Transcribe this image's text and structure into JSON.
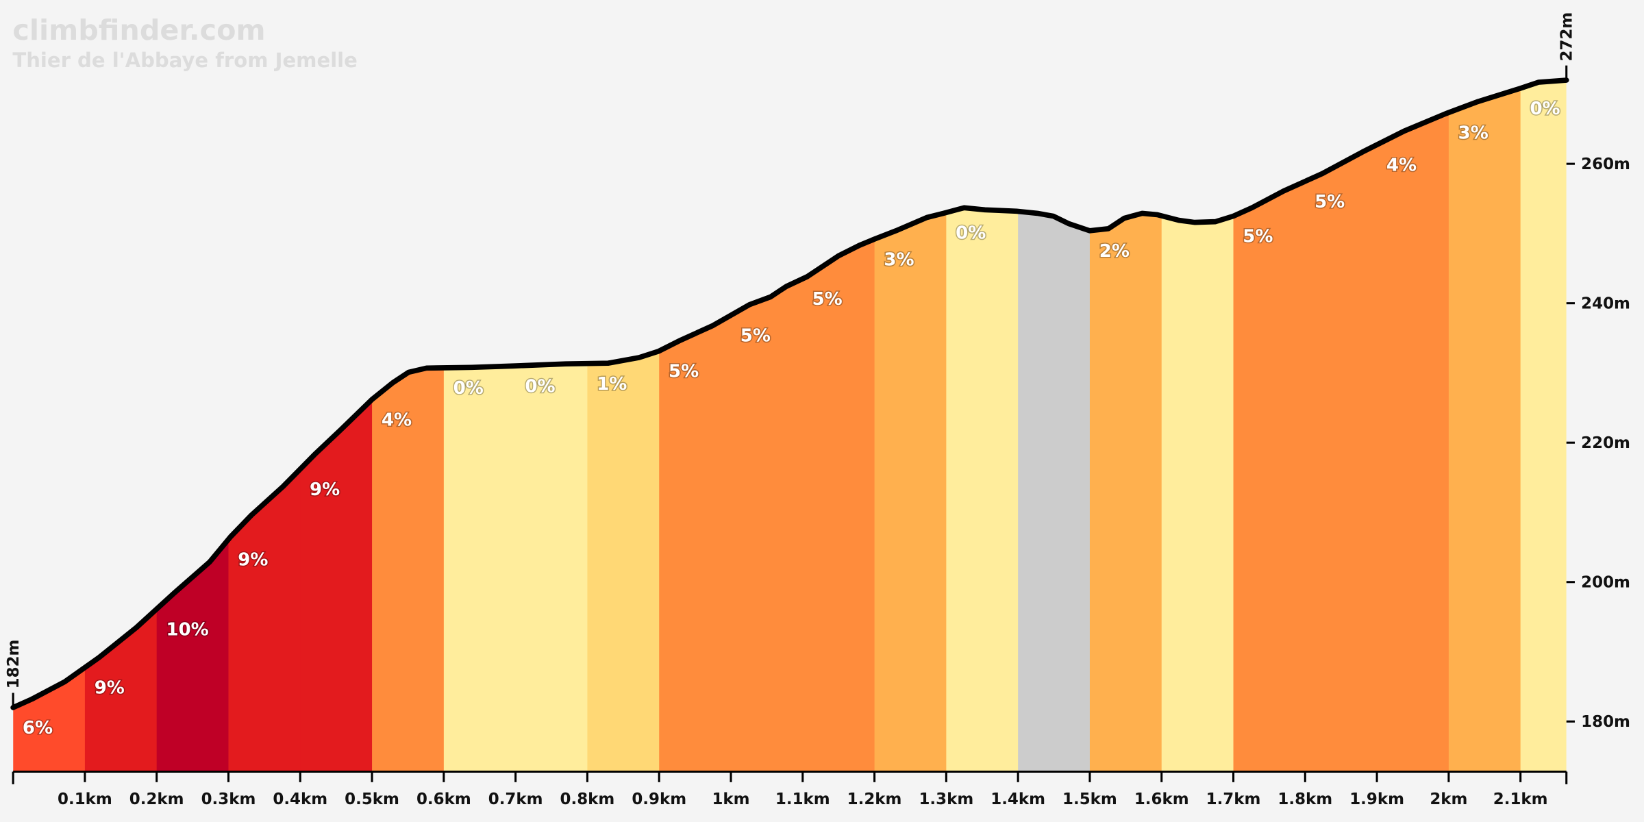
{
  "chart_data": {
    "type": "elevation-profile",
    "title": "climbfinder.com",
    "subtitle": "Thier de l'Abbaye from Jemelle",
    "start_label": "182m",
    "end_label": "272m",
    "line_color": "#000000",
    "x": [
      0,
      0.026,
      0.072,
      0.12,
      0.172,
      0.223,
      0.274,
      0.303,
      0.332,
      0.376,
      0.42,
      0.456,
      0.5,
      0.529,
      0.551,
      0.576,
      0.639,
      0.697,
      0.77,
      0.829,
      0.872,
      0.899,
      0.93,
      0.975,
      1.026,
      1.055,
      1.077,
      1.106,
      1.15,
      1.179,
      1.2,
      1.23,
      1.273,
      1.296,
      1.325,
      1.354,
      1.398,
      1.427,
      1.449,
      1.471,
      1.5,
      1.526,
      1.548,
      1.573,
      1.594,
      1.624,
      1.646,
      1.675,
      1.7,
      1.726,
      1.77,
      1.824,
      1.88,
      1.938,
      1.996,
      2.04,
      2.099,
      2.125,
      2.164
    ],
    "values": [
      182,
      183.2,
      185.7,
      189.2,
      193.5,
      198.3,
      202.9,
      206.5,
      209.6,
      213.7,
      218.3,
      221.8,
      226.2,
      228.6,
      230.1,
      230.7,
      230.8,
      231.0,
      231.3,
      231.4,
      232.2,
      233.1,
      234.7,
      236.8,
      239.8,
      240.9,
      242.4,
      243.8,
      246.8,
      248.3,
      249.2,
      250.4,
      252.3,
      252.9,
      253.7,
      253.4,
      253.2,
      252.9,
      252.5,
      251.4,
      250.4,
      250.7,
      252.2,
      252.9,
      252.7,
      251.9,
      251.6,
      251.7,
      252.5,
      253.7,
      256.1,
      258.6,
      261.7,
      264.7,
      267.2,
      268.9,
      270.8,
      271.7,
      272
    ],
    "segments": {
      "bounds": [
        0,
        0.1,
        0.2,
        0.3,
        0.4,
        0.5,
        0.6,
        0.7,
        0.8,
        0.9,
        1.0,
        1.1,
        1.2,
        1.3,
        1.4,
        1.5,
        1.6,
        1.7,
        1.8,
        1.9,
        2.0,
        2.1,
        2.164
      ],
      "values": [
        6,
        9,
        10,
        9,
        9,
        4,
        0,
        0,
        1,
        5,
        5,
        5,
        3,
        0,
        null,
        2,
        null,
        5,
        5,
        4,
        3,
        0
      ],
      "value_labels": [
        "6%",
        "9%",
        "10%",
        "9%",
        "9%",
        "4%",
        "0%",
        "0%",
        "1%",
        "5%",
        "5%",
        "5%",
        "3%",
        "0%",
        null,
        "2%",
        null,
        "5%",
        "5%",
        "4%",
        "3%",
        "0%"
      ],
      "colors": [
        "#ff4b2b",
        "#e31b1e",
        "#bf0026",
        "#e31b1e",
        "#e31b1e",
        "#ff8c3c",
        "#ffed9c",
        "#ffed9c",
        "#ffd875",
        "#ff8c3c",
        "#ff8c3c",
        "#ff8c3c",
        "#ffb04e",
        "#ffed9c",
        "#cccccc",
        "#ffb04e",
        "#ffed9c",
        "#ff8c3c",
        "#ff8c3c",
        "#ff8c3c",
        "#ffb04e",
        "#ffed9c"
      ]
    },
    "xlim": [
      0,
      2.164
    ],
    "xticks": [
      {
        "value": 0.1,
        "label": "0.1km"
      },
      {
        "value": 0.2,
        "label": "0.2km"
      },
      {
        "value": 0.3,
        "label": "0.3km"
      },
      {
        "value": 0.4,
        "label": "0.4km"
      },
      {
        "value": 0.5,
        "label": "0.5km"
      },
      {
        "value": 0.6,
        "label": "0.6km"
      },
      {
        "value": 0.7,
        "label": "0.7km"
      },
      {
        "value": 0.8,
        "label": "0.8km"
      },
      {
        "value": 0.9,
        "label": "0.9km"
      },
      {
        "value": 1.0,
        "label": "1km"
      },
      {
        "value": 1.1,
        "label": "1.1km"
      },
      {
        "value": 1.2,
        "label": "1.2km"
      },
      {
        "value": 1.3,
        "label": "1.3km"
      },
      {
        "value": 1.4,
        "label": "1.4km"
      },
      {
        "value": 1.5,
        "label": "1.5km"
      },
      {
        "value": 1.6,
        "label": "1.6km"
      },
      {
        "value": 1.7,
        "label": "1.7km"
      },
      {
        "value": 1.8,
        "label": "1.8km"
      },
      {
        "value": 1.9,
        "label": "1.9km"
      },
      {
        "value": 2.0,
        "label": "2km"
      },
      {
        "value": 2.1,
        "label": "2.1km"
      }
    ],
    "ylim": [
      172.8,
      283.5
    ],
    "yticks": [
      {
        "value": 180,
        "label": "180m"
      },
      {
        "value": 200,
        "label": "200m"
      },
      {
        "value": 220,
        "label": "220m"
      },
      {
        "value": 240,
        "label": "240m"
      },
      {
        "value": 260,
        "label": "260m"
      }
    ]
  }
}
